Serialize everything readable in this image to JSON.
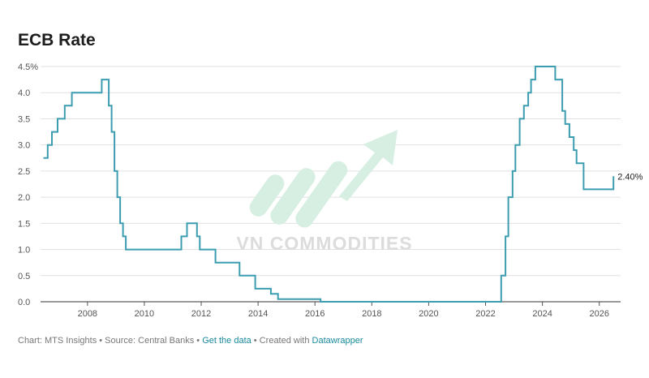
{
  "title": "ECB Rate",
  "footer": {
    "chart_label": "Chart: MTS Insights",
    "source_label": "Source: Central Banks",
    "get_data_link": "Get the data",
    "created_with": "Created with",
    "datawrapper_link": "Datawrapper",
    "sep": " • "
  },
  "watermark": {
    "text": "VN COMMODITIES"
  },
  "colors": {
    "line": "#3d9db0",
    "grid": "#e1e1e1",
    "baseline": "#333333",
    "watermark": "#cfe9dc"
  },
  "chart_data": {
    "type": "line",
    "title": "ECB Rate",
    "xlabel": "",
    "ylabel": "",
    "xlim": [
      2006.35,
      2026.75
    ],
    "ylim": [
      0,
      4.5
    ],
    "y_ticks": [
      0,
      0.5,
      1.0,
      1.5,
      2.0,
      2.5,
      3.0,
      3.5,
      4.0,
      4.5
    ],
    "y_tick_labels": [
      "0.0",
      "0.5",
      "1.0",
      "1.5",
      "2.0",
      "2.5",
      "3.0",
      "3.5",
      "4.0",
      "4.5%"
    ],
    "x_ticks": [
      2008,
      2010,
      2012,
      2014,
      2016,
      2018,
      2020,
      2022,
      2024,
      2026
    ],
    "x_tick_labels": [
      "2008",
      "2010",
      "2012",
      "2014",
      "2016",
      "2018",
      "2020",
      "2022",
      "2024",
      "2026"
    ],
    "grid": true,
    "end_label": "2.40%",
    "series": [
      {
        "step": true,
        "x": [
          2006.45,
          2006.6,
          2006.75,
          2006.95,
          2007.2,
          2007.45,
          2008.5,
          2008.75,
          2008.85,
          2008.95,
          2009.05,
          2009.15,
          2009.25,
          2009.35,
          2011.3,
          2011.5,
          2011.85,
          2011.95,
          2012.5,
          2013.35,
          2013.9,
          2014.45,
          2014.7,
          2016.2,
          2022.55,
          2022.7,
          2022.8,
          2022.95,
          2023.05,
          2023.2,
          2023.35,
          2023.5,
          2023.6,
          2023.75,
          2024.45,
          2024.7,
          2024.8,
          2024.95,
          2025.1,
          2025.2,
          2025.45,
          2026.45,
          2026.5
        ],
        "values": [
          2.75,
          3.0,
          3.25,
          3.5,
          3.75,
          4.0,
          4.25,
          3.75,
          3.25,
          2.5,
          2.0,
          1.5,
          1.25,
          1.0,
          1.25,
          1.5,
          1.25,
          1.0,
          0.75,
          0.5,
          0.25,
          0.15,
          0.05,
          0.0,
          0.5,
          1.25,
          2.0,
          2.5,
          3.0,
          3.5,
          3.75,
          4.0,
          4.25,
          4.5,
          4.25,
          3.65,
          3.4,
          3.15,
          2.9,
          2.65,
          2.15,
          2.15,
          2.4
        ]
      }
    ]
  }
}
